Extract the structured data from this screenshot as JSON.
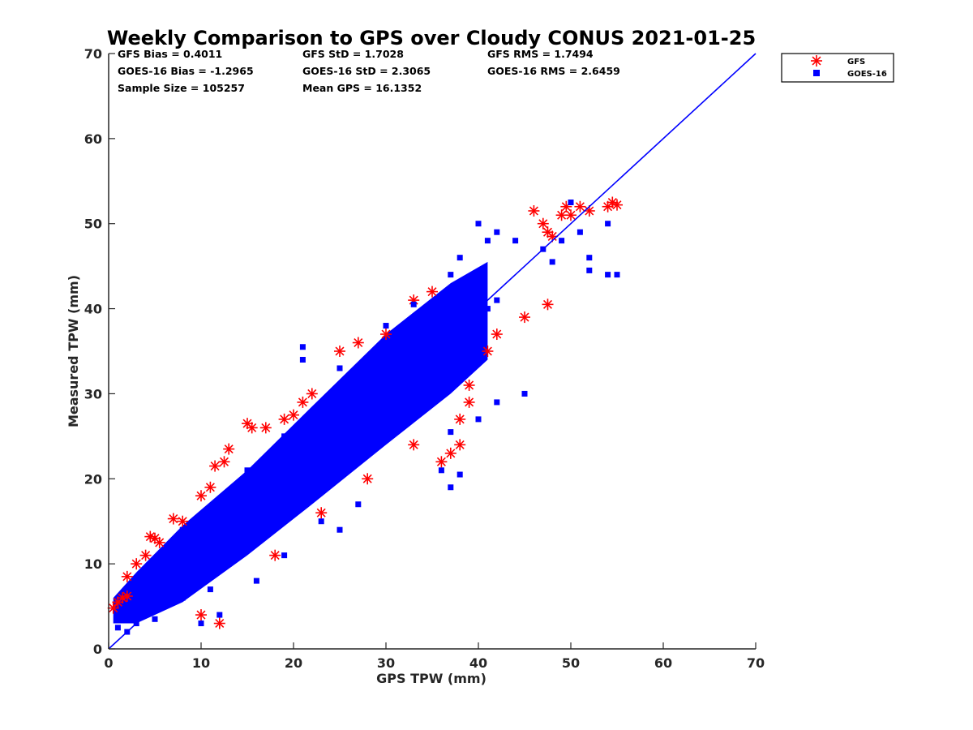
{
  "chart_data": {
    "type": "scatter",
    "title": "Weekly Comparison to GPS over Cloudy CONUS 2021-01-25",
    "xlabel": "GPS TPW (mm)",
    "ylabel": "Measured TPW (mm)",
    "xlim": [
      0,
      70
    ],
    "ylim": [
      0,
      70
    ],
    "xticks": [
      "0",
      "10",
      "20",
      "30",
      "40",
      "50",
      "60",
      "70"
    ],
    "yticks": [
      "0",
      "10",
      "20",
      "30",
      "40",
      "50",
      "60",
      "70"
    ],
    "grid": false,
    "legend_position": "outside-top-right",
    "stats": [
      "GFS Bias = 0.4011",
      "GFS StD = 1.7028",
      "GFS RMS = 1.7494",
      "GOES-16 Bias = -1.2965",
      "GOES-16 StD = 2.3065",
      "GOES-16 RMS = 2.6459",
      "Sample Size = 105257",
      "Mean GPS = 16.1352"
    ],
    "series": [
      {
        "name": "GFS",
        "marker": "asterisk",
        "color": "#ff0000",
        "points": [
          [
            0.5,
            4.8
          ],
          [
            1,
            5.5
          ],
          [
            1.5,
            6
          ],
          [
            2,
            6.2
          ],
          [
            2,
            8.5
          ],
          [
            3,
            10
          ],
          [
            4,
            11
          ],
          [
            4.5,
            13.2
          ],
          [
            5,
            13
          ],
          [
            5.5,
            12.5
          ],
          [
            7,
            15.3
          ],
          [
            8,
            15
          ],
          [
            10,
            18
          ],
          [
            11,
            19
          ],
          [
            11.5,
            21.5
          ],
          [
            12.5,
            22
          ],
          [
            13,
            23.5
          ],
          [
            15,
            26.5
          ],
          [
            15.5,
            26
          ],
          [
            17,
            26
          ],
          [
            19,
            27
          ],
          [
            20,
            27.5
          ],
          [
            21,
            29
          ],
          [
            22,
            30
          ],
          [
            25,
            35
          ],
          [
            27,
            36
          ],
          [
            30,
            37
          ],
          [
            33,
            41
          ],
          [
            35,
            42
          ],
          [
            36,
            22
          ],
          [
            37,
            23
          ],
          [
            38,
            24
          ],
          [
            38,
            27
          ],
          [
            39,
            29
          ],
          [
            39,
            31
          ],
          [
            41,
            35
          ],
          [
            42,
            37
          ],
          [
            45,
            39
          ],
          [
            46,
            51.5
          ],
          [
            47,
            50
          ],
          [
            47.5,
            49
          ],
          [
            47.5,
            40.5
          ],
          [
            48,
            48.5
          ],
          [
            49,
            51
          ],
          [
            49.5,
            52
          ],
          [
            50,
            51
          ],
          [
            51,
            52
          ],
          [
            52,
            51.5
          ],
          [
            54,
            52
          ],
          [
            54.5,
            52.5
          ],
          [
            55,
            52.2
          ],
          [
            12,
            3
          ],
          [
            10,
            4
          ],
          [
            18,
            11
          ],
          [
            23,
            16
          ],
          [
            28,
            20
          ],
          [
            33,
            24
          ]
        ]
      },
      {
        "name": "GOES-16",
        "marker": "square",
        "color": "#0000ff",
        "points": [
          [
            1,
            2.5
          ],
          [
            2,
            2
          ],
          [
            3,
            3
          ],
          [
            3,
            4.5
          ],
          [
            5,
            3.5
          ],
          [
            6,
            5
          ],
          [
            6,
            7.5
          ],
          [
            8,
            6
          ],
          [
            9,
            9
          ],
          [
            10,
            8
          ],
          [
            11,
            7
          ],
          [
            12,
            11
          ],
          [
            13,
            10
          ],
          [
            14,
            13
          ],
          [
            15,
            12
          ],
          [
            16,
            14
          ],
          [
            17,
            16
          ],
          [
            18,
            15
          ],
          [
            19,
            18
          ],
          [
            20,
            19
          ],
          [
            21,
            17
          ],
          [
            22,
            21
          ],
          [
            23,
            20
          ],
          [
            24,
            23
          ],
          [
            25,
            22
          ],
          [
            26,
            25
          ],
          [
            27,
            24
          ],
          [
            28,
            27
          ],
          [
            29,
            26
          ],
          [
            30,
            29
          ],
          [
            31,
            28
          ],
          [
            32,
            31
          ],
          [
            33,
            30
          ],
          [
            34,
            33
          ],
          [
            35,
            32
          ],
          [
            36,
            35
          ],
          [
            37,
            34
          ],
          [
            38,
            37
          ],
          [
            39,
            36
          ],
          [
            40,
            39
          ],
          [
            41,
            40
          ],
          [
            42,
            41
          ],
          [
            8,
            14
          ],
          [
            11,
            16
          ],
          [
            15,
            21
          ],
          [
            19,
            25
          ],
          [
            21,
            35.5
          ],
          [
            21,
            34
          ],
          [
            25,
            33
          ],
          [
            30,
            38
          ],
          [
            33,
            40.5
          ],
          [
            37,
            44
          ],
          [
            38,
            46
          ],
          [
            41,
            48
          ],
          [
            42,
            49
          ],
          [
            40,
            50
          ],
          [
            44,
            48
          ],
          [
            47,
            47
          ],
          [
            48,
            45.5
          ],
          [
            49,
            48
          ],
          [
            50,
            52.5
          ],
          [
            51,
            49
          ],
          [
            52,
            46
          ],
          [
            52,
            44.5
          ],
          [
            54,
            50
          ],
          [
            54,
            44
          ],
          [
            55,
            44
          ],
          [
            45,
            30
          ],
          [
            42,
            29
          ],
          [
            40,
            27
          ],
          [
            37,
            25.5
          ],
          [
            36,
            21
          ],
          [
            38,
            20.5
          ],
          [
            37,
            19
          ],
          [
            27,
            17
          ],
          [
            25,
            14
          ],
          [
            23,
            15
          ],
          [
            19,
            11
          ],
          [
            16,
            8
          ],
          [
            10,
            3
          ],
          [
            12,
            4
          ]
        ]
      }
    ],
    "reference_line": {
      "name": "1:1 line",
      "color": "#0000ff",
      "points": [
        [
          0,
          0
        ],
        [
          70,
          70
        ]
      ]
    }
  }
}
